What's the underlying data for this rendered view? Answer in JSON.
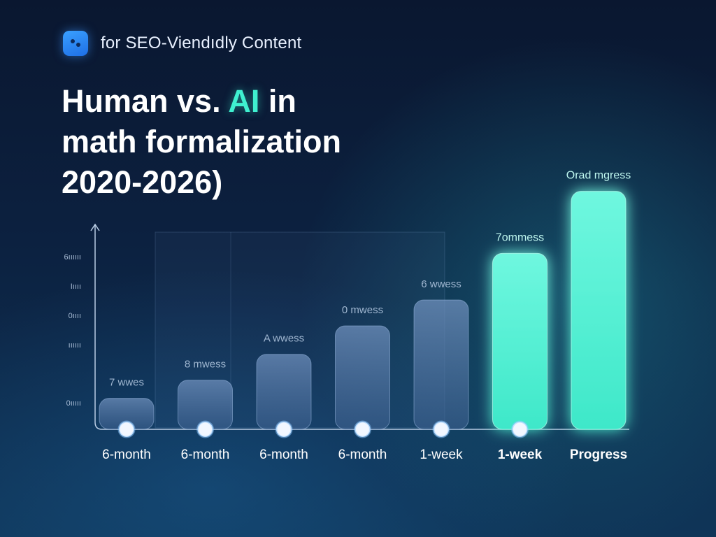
{
  "header": {
    "brand_text": "for SEO-Viendıdly Content",
    "title_part1": "Human vs. ",
    "title_highlight": "AI",
    "title_part2": " in",
    "title_line2": "math formalization",
    "title_line3": "2020-2026)"
  },
  "icons": {
    "brand": "app-logo-icon",
    "axis": "arrow-up-icon"
  },
  "colors": {
    "accent": "#3ff0d0",
    "bar_fill": "#4d6f9c",
    "bar_glow": "#56f2d4",
    "background": "#0c2140"
  },
  "chart_data": {
    "type": "bar",
    "title": "Human vs. AI in math formalization 2020-2026)",
    "categories": [
      "6-month",
      "6-month",
      "6-month",
      "6-month",
      "1-week",
      "1-week",
      "Progress"
    ],
    "values": [
      12,
      19,
      29,
      40,
      50,
      68,
      92
    ],
    "bar_labels": [
      "7 wwes",
      "8 mwess",
      "A wwess",
      "0 mwess",
      "6 wwess",
      "7ommess",
      "Orad mgress"
    ],
    "highlighted": [
      false,
      false,
      false,
      false,
      false,
      true,
      true
    ],
    "y_tick_labels": [
      "0ııııı",
      "ıııııı",
      "0ıııı",
      "Iıııı",
      "6ıııııı"
    ],
    "ylim": [
      0,
      100
    ],
    "xlabel": "",
    "ylabel": "",
    "grid": false,
    "legend": "none"
  }
}
